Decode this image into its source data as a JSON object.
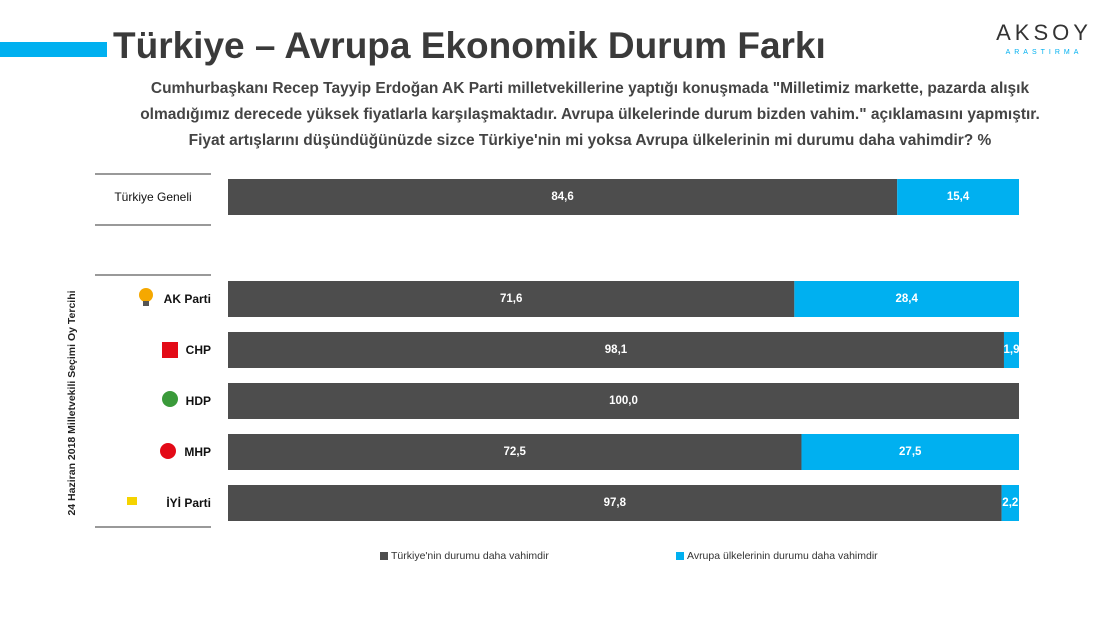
{
  "chart_data": {
    "type": "stacked-bar-horizontal",
    "title": "Türkiye – Avrupa Ekonomik Durum Farkı",
    "subtitle": [
      "Cumhurbaşkanı Recep Tayyip Erdoğan AK Parti milletvekillerine yaptığı konuşmada \"Milletimiz markette, pazarda alışık",
      "olmadığımız derecede yüksek fiyatlarla karşılaşmaktadır. Avrupa ülkelerinde durum bizden vahim.\" açıklamasını yapmıştır.",
      "Fiyat artışlarını düşündüğünüzde sizce Türkiye'nin mi yoksa Avrupa ülkelerinin mi durumu daha vahimdir? %"
    ],
    "group_label": "24 Haziran 2018 Milletvekili Seçimi Oy Tercihi",
    "logo": {
      "name": "AKSOY",
      "sub": "ARASTIRMA"
    },
    "categories": [
      "Türkiye Geneli",
      "AK Parti",
      "CHP",
      "HDP",
      "MHP",
      "İYİ Parti"
    ],
    "xlim": [
      0,
      100
    ],
    "legend": "bottom",
    "series": [
      {
        "name": "Türkiye'nin durumu daha vahimdir",
        "color": "#4d4d4d",
        "values": [
          84.6,
          71.6,
          98.1,
          100.0,
          72.5,
          97.8
        ],
        "value_labels": [
          "84,6",
          "71,6",
          "98,1",
          "100,0",
          "72,5",
          "97,8"
        ]
      },
      {
        "name": "Avrupa ülkelerinin durumu daha vahimdir",
        "color": "#00b0f0",
        "values": [
          15.4,
          28.4,
          1.9,
          0,
          27.5,
          2.2
        ],
        "value_labels": [
          "15,4",
          "28,4",
          "1,9",
          null,
          "27,5",
          "2,2"
        ]
      }
    ]
  }
}
